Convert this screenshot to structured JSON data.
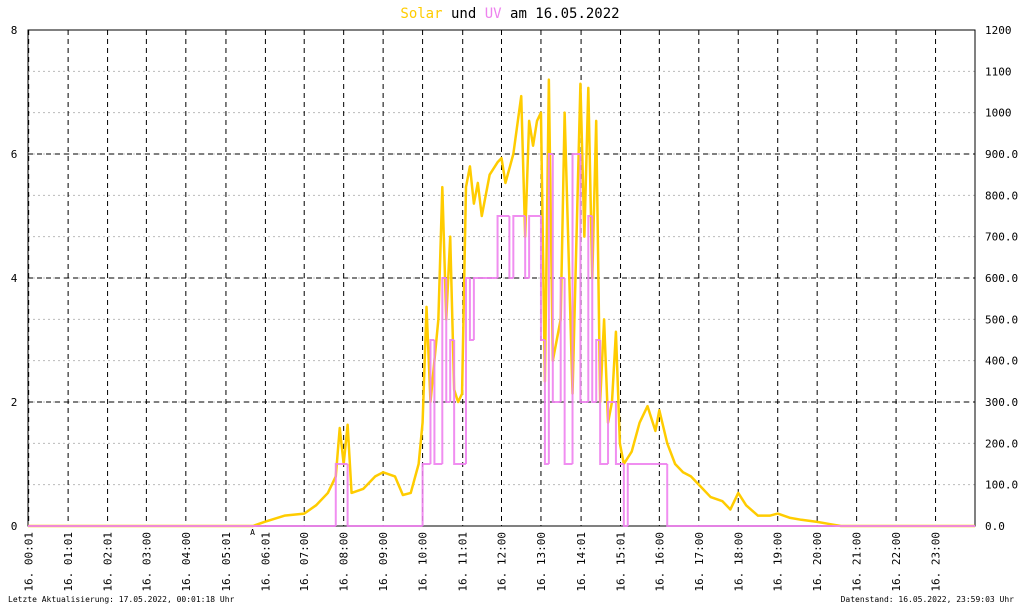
{
  "chart_data": {
    "type": "line",
    "title_connector": "und",
    "title_suffix": "am 16.05.2022",
    "xlim": [
      0,
      24
    ],
    "xticks": [
      {
        "value": 0.0167,
        "label": "16. 00:01"
      },
      {
        "value": 1.0167,
        "label": "16. 01:01"
      },
      {
        "value": 2.0167,
        "label": "16. 02:01"
      },
      {
        "value": 3,
        "label": "16. 03:00"
      },
      {
        "value": 4,
        "label": "16. 04:00"
      },
      {
        "value": 5.0167,
        "label": "16. 05:01"
      },
      {
        "value": 6.0167,
        "label": "16. 06:01"
      },
      {
        "value": 7,
        "label": "16. 07:00"
      },
      {
        "value": 8,
        "label": "16. 08:00"
      },
      {
        "value": 9,
        "label": "16. 09:00"
      },
      {
        "value": 10,
        "label": "16. 10:00"
      },
      {
        "value": 11.0167,
        "label": "16. 11:01"
      },
      {
        "value": 12,
        "label": "16. 12:00"
      },
      {
        "value": 13,
        "label": "16. 13:00"
      },
      {
        "value": 14.0167,
        "label": "16. 14:01"
      },
      {
        "value": 15.0167,
        "label": "16. 15:01"
      },
      {
        "value": 16,
        "label": "16. 16:00"
      },
      {
        "value": 17,
        "label": "16. 17:00"
      },
      {
        "value": 18,
        "label": "16. 18:00"
      },
      {
        "value": 19,
        "label": "16. 19:00"
      },
      {
        "value": 20,
        "label": "16. 20:00"
      },
      {
        "value": 21,
        "label": "16. 21:00"
      },
      {
        "value": 22,
        "label": "16. 22:00"
      },
      {
        "value": 23,
        "label": "16. 23:00"
      }
    ],
    "ylim": [
      0,
      8
    ],
    "yticks": [
      0,
      2,
      4,
      6,
      8
    ],
    "y2lim": [
      0,
      1200
    ],
    "y2ticks": [
      {
        "value": 0,
        "label": "0.0"
      },
      {
        "value": 100,
        "label": "100.0"
      },
      {
        "value": 200,
        "label": "200.0"
      },
      {
        "value": 300,
        "label": "300.0"
      },
      {
        "value": 400,
        "label": "400.0"
      },
      {
        "value": 500,
        "label": "500.0"
      },
      {
        "value": 600,
        "label": "600.0"
      },
      {
        "value": 700,
        "label": "700.0"
      },
      {
        "value": 800,
        "label": "800.0"
      },
      {
        "value": 900,
        "label": "900.0"
      },
      1000,
      1100,
      1200
    ],
    "grid": true,
    "series": [
      {
        "name": "Solar",
        "color": "#ffcc00",
        "axis": "y2",
        "x": [
          0,
          5.7,
          6.0,
          6.5,
          7.0,
          7.3,
          7.6,
          7.8,
          7.9,
          8.0,
          8.1,
          8.2,
          8.5,
          8.8,
          9.0,
          9.3,
          9.5,
          9.7,
          9.9,
          10.0,
          10.1,
          10.2,
          10.4,
          10.5,
          10.6,
          10.7,
          10.8,
          10.9,
          11.0,
          11.1,
          11.2,
          11.3,
          11.4,
          11.5,
          11.7,
          11.9,
          12.0,
          12.1,
          12.3,
          12.5,
          12.6,
          12.7,
          12.8,
          12.9,
          13.0,
          13.1,
          13.2,
          13.3,
          13.5,
          13.6,
          13.8,
          14.0,
          14.1,
          14.2,
          14.3,
          14.4,
          14.5,
          14.6,
          14.7,
          14.8,
          14.9,
          15.0,
          15.1,
          15.3,
          15.5,
          15.7,
          15.9,
          16.0,
          16.2,
          16.4,
          16.6,
          16.8,
          17.0,
          17.3,
          17.6,
          17.8,
          18.0,
          18.2,
          18.5,
          18.8,
          19.0,
          19.3,
          19.6,
          20.0,
          20.3,
          20.6,
          24
        ],
        "values": [
          0,
          0,
          10,
          25,
          30,
          50,
          80,
          120,
          237,
          150,
          245,
          80,
          90,
          120,
          130,
          120,
          75,
          80,
          150,
          250,
          530,
          300,
          500,
          820,
          500,
          700,
          330,
          300,
          320,
          820,
          870,
          780,
          830,
          750,
          850,
          880,
          890,
          830,
          900,
          1040,
          700,
          980,
          920,
          980,
          1000,
          350,
          1080,
          400,
          500,
          1000,
          320,
          1070,
          700,
          1060,
          600,
          980,
          300,
          500,
          250,
          300,
          470,
          200,
          150,
          180,
          250,
          290,
          230,
          280,
          200,
          150,
          130,
          120,
          100,
          70,
          60,
          40,
          80,
          50,
          25,
          25,
          30,
          20,
          15,
          10,
          5,
          0,
          0
        ]
      },
      {
        "name": "UV",
        "color": "#ee82ee",
        "x": [
          0,
          7.8,
          8.1,
          10.0,
          10.2,
          10.3,
          10.5,
          10.6,
          10.7,
          10.8,
          11.1,
          11.2,
          11.3,
          11.9,
          12.2,
          12.3,
          12.6,
          12.7,
          13.0,
          13.1,
          13.2,
          13.3,
          13.5,
          13.6,
          13.8,
          14.0,
          14.2,
          14.3,
          14.4,
          14.5,
          14.7,
          14.9,
          15.1,
          15.2,
          16.2,
          24
        ],
        "values": [
          0,
          1,
          0,
          1,
          3,
          1,
          4,
          2,
          3,
          1,
          4,
          3,
          4,
          5,
          4,
          5,
          4,
          5,
          3,
          1,
          6,
          2,
          4,
          1,
          6,
          2,
          5,
          2,
          3,
          1,
          2,
          1,
          0,
          1,
          0,
          0
        ]
      }
    ],
    "annotations": [
      {
        "text": "A",
        "x": 5.69,
        "color": "#cc0000"
      }
    ],
    "footer_left": "Letzte Aktualisierung: 17.05.2022, 00:01:18 Uhr",
    "footer_right": "Datenstand: 16.05.2022, 23:59:03 Uhr"
  }
}
